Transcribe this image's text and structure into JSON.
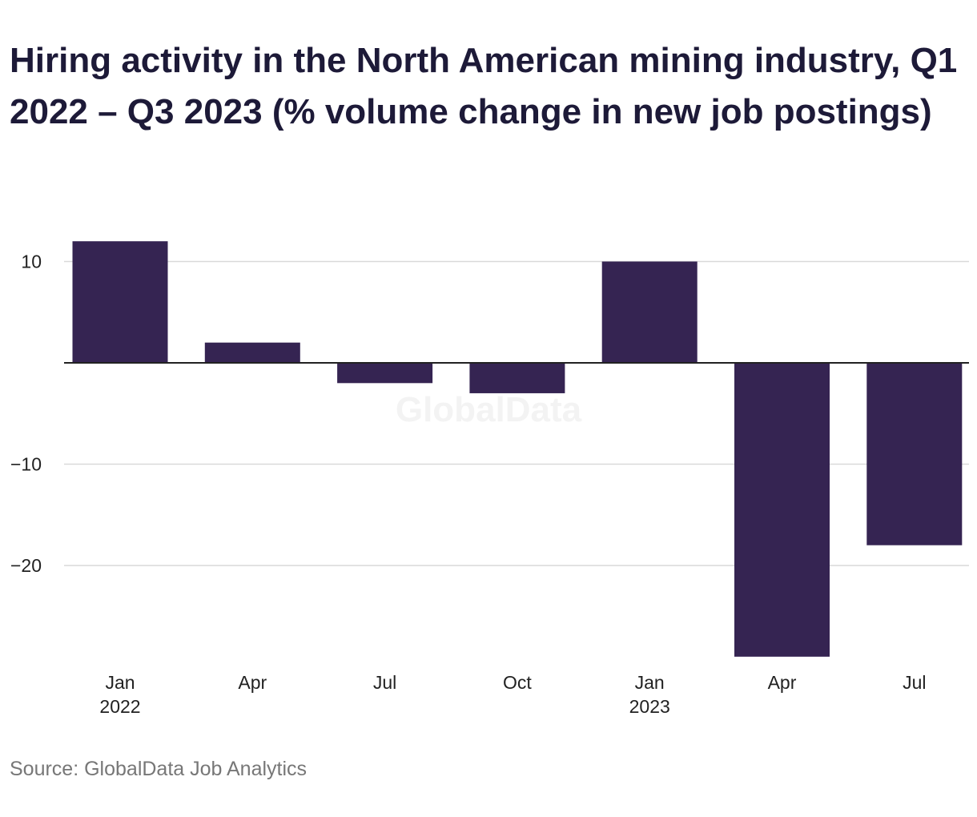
{
  "chart_data": {
    "type": "bar",
    "title": "Hiring activity in the North American mining industry, Q1 2022 – Q3 2023 (% volume change in new job postings)",
    "source": "Source: GlobalData Job Analytics",
    "watermark": "GlobalData",
    "categories": [
      "Jan 2022",
      "Apr 2022",
      "Jul 2022",
      "Oct 2022",
      "Jan 2023",
      "Apr 2023",
      "Jul 2023"
    ],
    "x_tick_labels": [
      {
        "month": "Jan",
        "year": "2022"
      },
      {
        "month": "Apr",
        "year": ""
      },
      {
        "month": "Jul",
        "year": ""
      },
      {
        "month": "Oct",
        "year": ""
      },
      {
        "month": "Jan",
        "year": "2023"
      },
      {
        "month": "Apr",
        "year": ""
      },
      {
        "month": "Jul",
        "year": ""
      }
    ],
    "values": [
      12,
      2,
      -2,
      -3,
      10,
      -29,
      -18
    ],
    "y_ticks": [
      10,
      -10,
      -20
    ],
    "y_tick_labels": [
      "10",
      "−10",
      "−20"
    ],
    "ylim": [
      -29,
      12
    ],
    "xlabel": "",
    "ylabel": "",
    "grid": true,
    "bar_color": "#352452"
  }
}
